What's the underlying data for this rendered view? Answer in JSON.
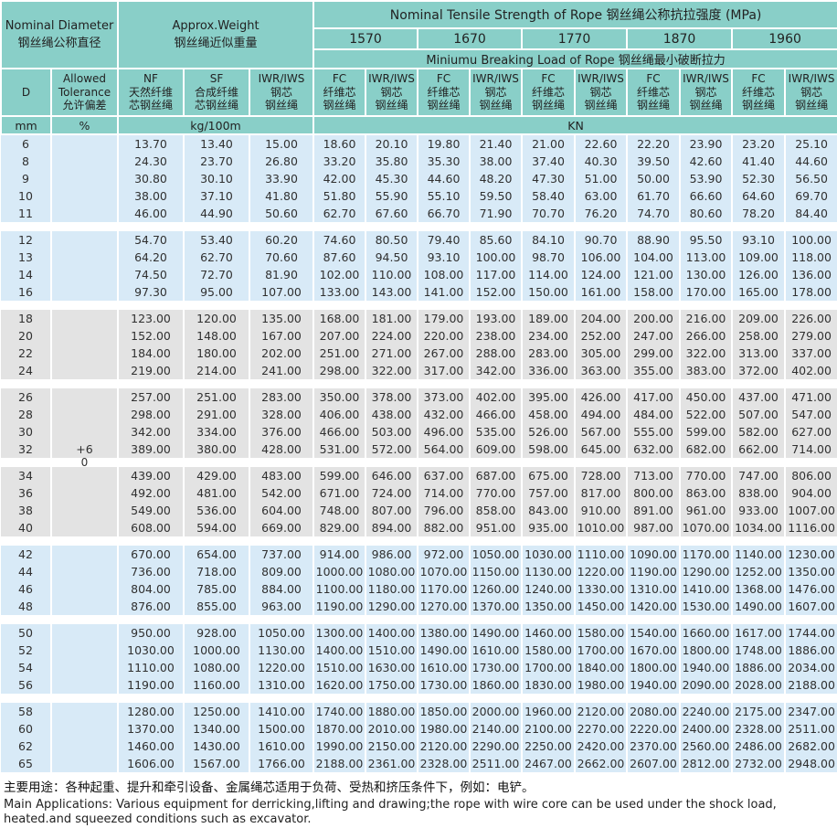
{
  "header": {
    "nominal_diameter": [
      "Nominal Diameter",
      "钢丝绳公称直径"
    ],
    "approx_weight": [
      "Approx.Weight",
      "钢丝绳近似重量"
    ],
    "tensile_title": "Nominal Tensile Strength of Rope 钢丝绳公称抗拉强度 (MPa)",
    "grades": [
      "1570",
      "1670",
      "1770",
      "1870",
      "1960"
    ],
    "breaking_title": "Miniumu Breaking Load of Rope 钢丝绳最小破断拉力",
    "col_d": "D",
    "col_tolerance": [
      "Allowed",
      "Tolerance",
      "允许偏差"
    ],
    "col_nf": [
      "NF",
      "天然纤维",
      "芯钢丝绳"
    ],
    "col_sf": [
      "SF",
      "合成纤维",
      "芯钢丝绳"
    ],
    "col_iwr": [
      "IWR/IWS",
      "钢芯",
      "钢丝绳"
    ],
    "col_fc": [
      "FC",
      "纤维芯",
      "钢丝绳"
    ],
    "units": {
      "mm": "mm",
      "percent": "%",
      "kg": "kg/100m",
      "kn": "KN"
    }
  },
  "tolerance": {
    "plus": "+6",
    "zero": "0",
    "plus_row_d": "32",
    "zero_gap_after_group": 3
  },
  "groups": [
    {
      "band": "blue",
      "rows": [
        {
          "d": "6",
          "values": [
            "13.70",
            "13.40",
            "15.00",
            "18.60",
            "20.10",
            "19.80",
            "21.40",
            "21.00",
            "22.60",
            "22.20",
            "23.90",
            "23.20",
            "25.10"
          ]
        },
        {
          "d": "8",
          "values": [
            "24.30",
            "23.70",
            "26.80",
            "33.20",
            "35.80",
            "35.30",
            "38.00",
            "37.40",
            "40.30",
            "39.50",
            "42.60",
            "41.40",
            "44.60"
          ]
        },
        {
          "d": "9",
          "values": [
            "30.80",
            "30.10",
            "33.90",
            "42.00",
            "45.30",
            "44.60",
            "48.20",
            "47.30",
            "51.00",
            "50.00",
            "53.90",
            "52.30",
            "56.50"
          ]
        },
        {
          "d": "10",
          "values": [
            "38.00",
            "37.10",
            "41.80",
            "51.80",
            "55.90",
            "55.10",
            "59.50",
            "58.40",
            "63.00",
            "61.70",
            "66.60",
            "64.60",
            "69.70"
          ]
        },
        {
          "d": "11",
          "values": [
            "46.00",
            "44.90",
            "50.60",
            "62.70",
            "67.60",
            "66.70",
            "71.90",
            "70.70",
            "76.20",
            "74.70",
            "80.60",
            "78.20",
            "84.40"
          ]
        }
      ]
    },
    {
      "band": "blue",
      "rows": [
        {
          "d": "12",
          "values": [
            "54.70",
            "53.40",
            "60.20",
            "74.60",
            "80.50",
            "79.40",
            "85.60",
            "84.10",
            "90.70",
            "88.90",
            "95.50",
            "93.10",
            "100.00"
          ]
        },
        {
          "d": "13",
          "values": [
            "64.20",
            "62.70",
            "70.60",
            "87.60",
            "94.50",
            "93.10",
            "100.00",
            "98.70",
            "106.00",
            "104.00",
            "113.00",
            "109.00",
            "118.00"
          ]
        },
        {
          "d": "14",
          "values": [
            "74.50",
            "72.70",
            "81.90",
            "102.00",
            "110.00",
            "108.00",
            "117.00",
            "114.00",
            "124.00",
            "121.00",
            "130.00",
            "126.00",
            "136.00"
          ]
        },
        {
          "d": "16",
          "values": [
            "97.30",
            "95.00",
            "107.00",
            "133.00",
            "143.00",
            "141.00",
            "152.00",
            "150.00",
            "161.00",
            "158.00",
            "170.00",
            "165.00",
            "178.00"
          ]
        }
      ]
    },
    {
      "band": "gray",
      "rows": [
        {
          "d": "18",
          "values": [
            "123.00",
            "120.00",
            "135.00",
            "168.00",
            "181.00",
            "179.00",
            "193.00",
            "189.00",
            "204.00",
            "200.00",
            "216.00",
            "209.00",
            "226.00"
          ]
        },
        {
          "d": "20",
          "values": [
            "152.00",
            "148.00",
            "167.00",
            "207.00",
            "224.00",
            "220.00",
            "238.00",
            "234.00",
            "252.00",
            "247.00",
            "266.00",
            "258.00",
            "279.00"
          ]
        },
        {
          "d": "22",
          "values": [
            "184.00",
            "180.00",
            "202.00",
            "251.00",
            "271.00",
            "267.00",
            "288.00",
            "283.00",
            "305.00",
            "299.00",
            "322.00",
            "313.00",
            "337.00"
          ]
        },
        {
          "d": "24",
          "values": [
            "219.00",
            "214.00",
            "241.00",
            "298.00",
            "322.00",
            "317.00",
            "342.00",
            "336.00",
            "363.00",
            "355.00",
            "383.00",
            "372.00",
            "402.00"
          ]
        }
      ]
    },
    {
      "band": "gray",
      "rows": [
        {
          "d": "26",
          "values": [
            "257.00",
            "251.00",
            "283.00",
            "350.00",
            "378.00",
            "373.00",
            "402.00",
            "395.00",
            "426.00",
            "417.00",
            "450.00",
            "437.00",
            "471.00"
          ]
        },
        {
          "d": "28",
          "values": [
            "298.00",
            "291.00",
            "328.00",
            "406.00",
            "438.00",
            "432.00",
            "466.00",
            "458.00",
            "494.00",
            "484.00",
            "522.00",
            "507.00",
            "547.00"
          ]
        },
        {
          "d": "30",
          "values": [
            "342.00",
            "334.00",
            "376.00",
            "466.00",
            "503.00",
            "496.00",
            "535.00",
            "526.00",
            "567.00",
            "555.00",
            "599.00",
            "582.00",
            "627.00"
          ]
        },
        {
          "d": "32",
          "values": [
            "389.00",
            "380.00",
            "428.00",
            "531.00",
            "572.00",
            "564.00",
            "609.00",
            "598.00",
            "645.00",
            "632.00",
            "682.00",
            "662.00",
            "714.00"
          ]
        }
      ]
    },
    {
      "band": "gray",
      "rows": [
        {
          "d": "34",
          "values": [
            "439.00",
            "429.00",
            "483.00",
            "599.00",
            "646.00",
            "637.00",
            "687.00",
            "675.00",
            "728.00",
            "713.00",
            "770.00",
            "747.00",
            "806.00"
          ]
        },
        {
          "d": "36",
          "values": [
            "492.00",
            "481.00",
            "542.00",
            "671.00",
            "724.00",
            "714.00",
            "770.00",
            "757.00",
            "817.00",
            "800.00",
            "863.00",
            "838.00",
            "904.00"
          ]
        },
        {
          "d": "38",
          "values": [
            "549.00",
            "536.00",
            "604.00",
            "748.00",
            "807.00",
            "796.00",
            "858.00",
            "843.00",
            "910.00",
            "891.00",
            "961.00",
            "933.00",
            "1007.00"
          ]
        },
        {
          "d": "40",
          "values": [
            "608.00",
            "594.00",
            "669.00",
            "829.00",
            "894.00",
            "882.00",
            "951.00",
            "935.00",
            "1010.00",
            "987.00",
            "1070.00",
            "1034.00",
            "1116.00"
          ]
        }
      ]
    },
    {
      "band": "blue",
      "rows": [
        {
          "d": "42",
          "values": [
            "670.00",
            "654.00",
            "737.00",
            "914.00",
            "986.00",
            "972.00",
            "1050.00",
            "1030.00",
            "1110.00",
            "1090.00",
            "1170.00",
            "1140.00",
            "1230.00"
          ]
        },
        {
          "d": "44",
          "values": [
            "736.00",
            "718.00",
            "809.00",
            "1000.00",
            "1080.00",
            "1070.00",
            "1150.00",
            "1130.00",
            "1220.00",
            "1190.00",
            "1290.00",
            "1252.00",
            "1350.00"
          ]
        },
        {
          "d": "46",
          "values": [
            "804.00",
            "785.00",
            "884.00",
            "1100.00",
            "1180.00",
            "1170.00",
            "1260.00",
            "1240.00",
            "1330.00",
            "1310.00",
            "1410.00",
            "1368.00",
            "1476.00"
          ]
        },
        {
          "d": "48",
          "values": [
            "876.00",
            "855.00",
            "963.00",
            "1190.00",
            "1290.00",
            "1270.00",
            "1370.00",
            "1350.00",
            "1450.00",
            "1420.00",
            "1530.00",
            "1490.00",
            "1607.00"
          ]
        }
      ]
    },
    {
      "band": "blue",
      "rows": [
        {
          "d": "50",
          "values": [
            "950.00",
            "928.00",
            "1050.00",
            "1300.00",
            "1400.00",
            "1380.00",
            "1490.00",
            "1460.00",
            "1580.00",
            "1540.00",
            "1660.00",
            "1617.00",
            "1744.00"
          ]
        },
        {
          "d": "52",
          "values": [
            "1030.00",
            "1000.00",
            "1130.00",
            "1400.00",
            "1510.00",
            "1490.00",
            "1610.00",
            "1580.00",
            "1700.00",
            "1670.00",
            "1800.00",
            "1748.00",
            "1886.00"
          ]
        },
        {
          "d": "54",
          "values": [
            "1110.00",
            "1080.00",
            "1220.00",
            "1510.00",
            "1630.00",
            "1610.00",
            "1730.00",
            "1700.00",
            "1840.00",
            "1800.00",
            "1940.00",
            "1886.00",
            "2034.00"
          ]
        },
        {
          "d": "56",
          "values": [
            "1190.00",
            "1160.00",
            "1310.00",
            "1620.00",
            "1750.00",
            "1730.00",
            "1860.00",
            "1830.00",
            "1980.00",
            "1940.00",
            "2090.00",
            "2028.00",
            "2188.00"
          ]
        }
      ]
    },
    {
      "band": "blue",
      "rows": [
        {
          "d": "58",
          "values": [
            "1280.00",
            "1250.00",
            "1410.00",
            "1740.00",
            "1880.00",
            "1850.00",
            "2000.00",
            "1960.00",
            "2120.00",
            "2080.00",
            "2240.00",
            "2175.00",
            "2347.00"
          ]
        },
        {
          "d": "60",
          "values": [
            "1370.00",
            "1340.00",
            "1500.00",
            "1870.00",
            "2010.00",
            "1980.00",
            "2140.00",
            "2100.00",
            "2270.00",
            "2220.00",
            "2400.00",
            "2328.00",
            "2511.00"
          ]
        },
        {
          "d": "62",
          "values": [
            "1460.00",
            "1430.00",
            "1610.00",
            "1990.00",
            "2150.00",
            "2120.00",
            "2290.00",
            "2250.00",
            "2420.00",
            "2370.00",
            "2560.00",
            "2486.00",
            "2682.00"
          ]
        },
        {
          "d": "65",
          "values": [
            "1606.00",
            "1567.00",
            "1766.00",
            "2188.00",
            "2361.00",
            "2328.00",
            "2511.00",
            "2467.00",
            "2662.00",
            "2607.00",
            "2812.00",
            "2732.00",
            "2948.00"
          ]
        }
      ]
    }
  ],
  "footer": {
    "line_cn": "主要用途：各种起重、提升和牵引设备、金属绳芯适用于负荷、受热和挤压条件下，例如：电铲。",
    "line_en1": "Main Applications: Various equipment for derricking,lifting and drawing;the rope with wire core can be used under the shock load,",
    "line_en2": "heated.and squeezed conditions such as excavator."
  },
  "colors": {
    "teal_header": "#89CFC8",
    "blue_band": "#D8EAF7",
    "gray_band": "#E3E3E3",
    "separator": "#FFFFFF"
  }
}
